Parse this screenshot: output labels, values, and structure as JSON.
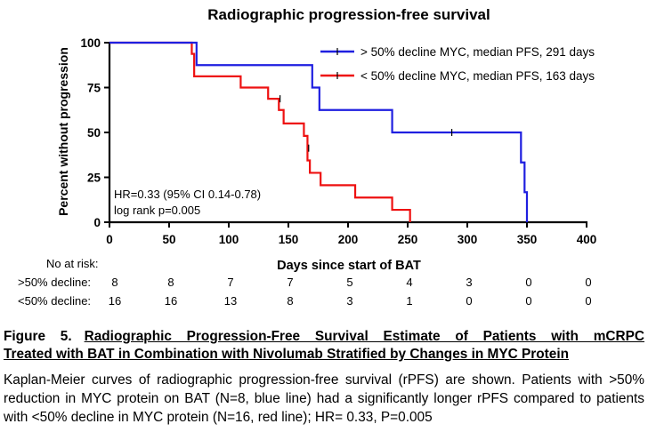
{
  "chart_data": {
    "type": "line",
    "subtype": "kaplan-meier step",
    "title": "Radiographic progression-free survival",
    "xlabel": "Days since start of BAT",
    "ylabel": "Percent without progression",
    "xlim": [
      0,
      400
    ],
    "ylim": [
      0,
      100
    ],
    "xticks": [
      "0",
      "50",
      "100",
      "150",
      "200",
      "250",
      "300",
      "350",
      "400"
    ],
    "yticks": [
      "0",
      "25",
      "50",
      "75",
      "100"
    ],
    "x_tick_values": [
      0,
      50,
      100,
      150,
      200,
      250,
      300,
      350,
      400
    ],
    "y_tick_values": [
      0,
      25,
      50,
      75,
      100
    ],
    "legend_position": "top-right",
    "series": [
      {
        "name": "> 50% decline MYC, median PFS, 291 days",
        "color": "#1f1fe0",
        "x": [
          0,
          73,
          170,
          176,
          237,
          345,
          348,
          350
        ],
        "y": [
          100,
          87.5,
          75,
          62.5,
          50,
          33.3,
          16.7,
          0
        ],
        "censored": [
          [
            287,
            50
          ]
        ]
      },
      {
        "name": "< 50% decline MYC, median PFS, 163 days",
        "color": "#ee1111",
        "x": [
          0,
          69,
          71,
          110,
          133,
          142,
          146,
          151,
          163,
          166,
          168,
          177,
          206,
          237,
          252
        ],
        "y": [
          100,
          93.75,
          81.25,
          75,
          68.75,
          62.5,
          55,
          55,
          48.1,
          34.4,
          27.5,
          20.6,
          13.75,
          6.9,
          0
        ],
        "censored": [
          [
            143,
            68.75
          ],
          [
            167,
            41.25
          ]
        ]
      }
    ],
    "annotations": [
      "HR=0.33 (95% CI 0.14-0.78)",
      "log rank p=0.005"
    ],
    "risk_table": {
      "header": "No at risk:",
      "timepoints": [
        0,
        50,
        100,
        150,
        200,
        250,
        300,
        350,
        400
      ],
      "rows": [
        {
          "label": ">50% decline:",
          "counts": [
            "8",
            "8",
            "7",
            "7",
            "5",
            "4",
            "3",
            "0",
            "0"
          ]
        },
        {
          "label": "<50% decline:",
          "counts": [
            "16",
            "16",
            "13",
            "8",
            "3",
            "1",
            "0",
            "0",
            "0"
          ]
        }
      ]
    }
  },
  "caption": {
    "figure_label": "Figure 5.",
    "title_line1": "Radiographic Progression-Free Survival Estimate of Patients with mCRPC",
    "title_line2": "Treated with BAT in Combination with Nivolumab Stratified by Changes in MYC Protein",
    "body": "Kaplan-Meier curves of radiographic progression-free survival (rPFS) are shown.  Patients with >50% reduction in MYC protein on BAT (N=8, blue line) had a significantly longer rPFS compared to patients with <50% decline in MYC protein (N=16, red line); HR= 0.33, P=0.005"
  }
}
